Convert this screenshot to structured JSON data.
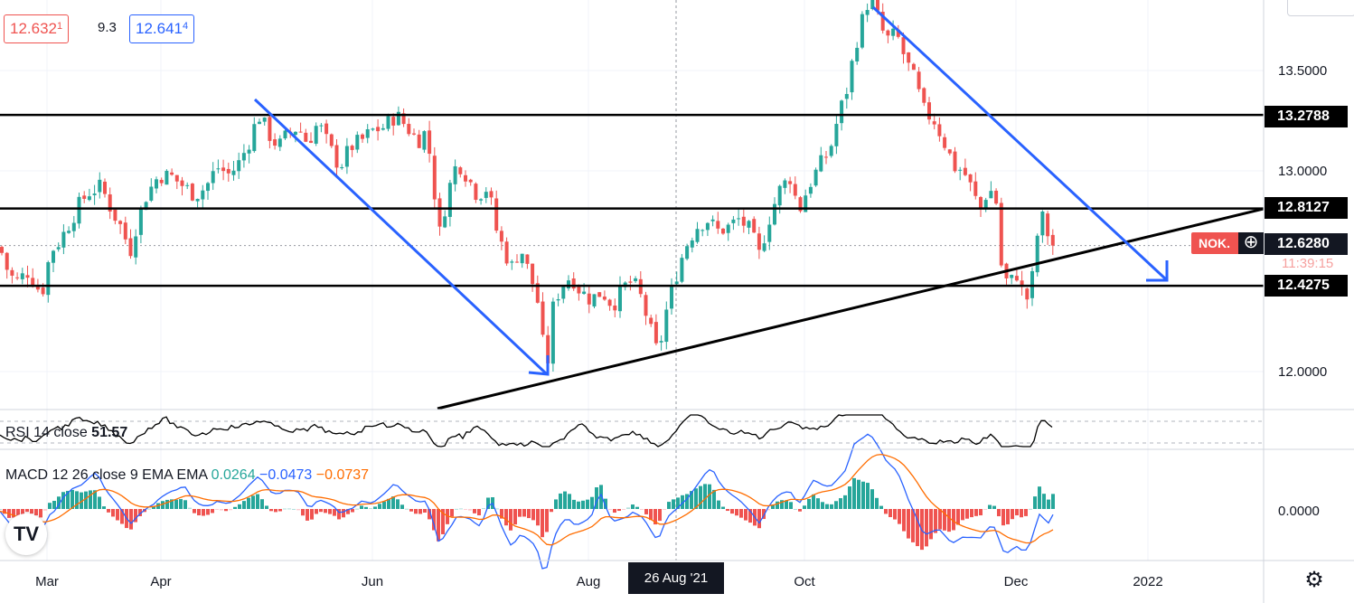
{
  "header": {
    "bid": "12.632",
    "bid_sup": "1",
    "spread": "9.3",
    "ask": "12.641",
    "ask_sup": "4"
  },
  "price_labels": {
    "upper_resistance": "13.2788",
    "mid_resistance": "12.8127",
    "last_price": "12.6280",
    "support": "12.4275",
    "countdown": "11:39:15",
    "symbol_tag": "NOK.",
    "plus_icon": "⊕"
  },
  "indicators": {
    "rsi": {
      "label": "RSI 14 close",
      "value": "51.57"
    },
    "macd": {
      "label": "MACD 12 26 close 9 EMA EMA",
      "histogram": "0.0264",
      "macd": "−0.0473",
      "signal": "−0.0737"
    }
  },
  "crosshair_date": "26 Aug '21",
  "logo_text": "TV",
  "icons": {
    "settings": "settings-gear-icon",
    "logo": "tradingview-logo-icon"
  },
  "colors": {
    "up": "#26a69a",
    "down": "#ef5350",
    "trend_arrow": "#2962ff",
    "levels": "#000000",
    "signal": "#ff6d00"
  },
  "chart_data": {
    "type": "candlestick",
    "price_axis": {
      "ticks": [
        13.5,
        13.0,
        12.0
      ],
      "tick_labels": [
        "13.5000",
        "13.0000",
        "12.0000"
      ],
      "ylim": [
        11.68,
        13.95
      ]
    },
    "x_axis": {
      "labels": [
        "Mar",
        "Apr",
        "Jun",
        "Aug",
        "Oct",
        "Dec",
        "2022"
      ]
    },
    "horizontal_levels": [
      13.2788,
      12.8127,
      12.4275
    ],
    "last_price": 12.628,
    "rsi_value": 51.57,
    "macd_values": {
      "histogram": 0.0264,
      "macd": -0.0473,
      "signal": -0.0737
    },
    "macd_axis_tick": "0.0000",
    "price_path": [
      [
        0,
        12.62
      ],
      [
        10,
        12.48
      ],
      [
        20,
        12.45
      ],
      [
        30,
        12.5
      ],
      [
        38,
        12.45
      ],
      [
        46,
        12.38
      ],
      [
        56,
        12.6
      ],
      [
        66,
        12.65
      ],
      [
        78,
        12.75
      ],
      [
        90,
        12.85
      ],
      [
        100,
        12.9
      ],
      [
        112,
        12.92
      ],
      [
        124,
        12.8
      ],
      [
        134,
        12.72
      ],
      [
        144,
        12.6
      ],
      [
        152,
        12.75
      ],
      [
        162,
        12.88
      ],
      [
        176,
        12.98
      ],
      [
        190,
        12.97
      ],
      [
        204,
        12.92
      ],
      [
        216,
        12.88
      ],
      [
        228,
        12.92
      ],
      [
        240,
        13.02
      ],
      [
        254,
        12.98
      ],
      [
        266,
        13.05
      ],
      [
        276,
        13.15
      ],
      [
        286,
        13.28
      ],
      [
        298,
        13.18
      ],
      [
        308,
        13.12
      ],
      [
        318,
        13.18
      ],
      [
        330,
        13.22
      ],
      [
        340,
        13.14
      ],
      [
        352,
        13.24
      ],
      [
        364,
        13.12
      ],
      [
        376,
        13.02
      ],
      [
        388,
        13.12
      ],
      [
        400,
        13.15
      ],
      [
        412,
        13.2
      ],
      [
        426,
        13.22
      ],
      [
        438,
        13.28
      ],
      [
        450,
        13.22
      ],
      [
        462,
        13.15
      ],
      [
        472,
        13.2
      ],
      [
        480,
        12.92
      ],
      [
        486,
        12.68
      ],
      [
        496,
        12.9
      ],
      [
        506,
        13.05
      ],
      [
        516,
        12.98
      ],
      [
        528,
        12.88
      ],
      [
        540,
        12.92
      ],
      [
        548,
        12.72
      ],
      [
        558,
        12.6
      ],
      [
        566,
        12.52
      ],
      [
        576,
        12.62
      ],
      [
        586,
        12.48
      ],
      [
        594,
        12.38
      ],
      [
        600,
        12.15
      ],
      [
        606,
        12.05
      ],
      [
        612,
        12.32
      ],
      [
        620,
        12.42
      ],
      [
        632,
        12.48
      ],
      [
        642,
        12.4
      ],
      [
        654,
        12.36
      ],
      [
        666,
        12.4
      ],
      [
        678,
        12.33
      ],
      [
        690,
        12.42
      ],
      [
        700,
        12.45
      ],
      [
        710,
        12.36
      ],
      [
        720,
        12.2
      ],
      [
        728,
        12.08
      ],
      [
        738,
        12.32
      ],
      [
        748,
        12.48
      ],
      [
        758,
        12.62
      ],
      [
        770,
        12.72
      ],
      [
        782,
        12.76
      ],
      [
        794,
        12.7
      ],
      [
        806,
        12.72
      ],
      [
        818,
        12.76
      ],
      [
        830,
        12.7
      ],
      [
        840,
        12.58
      ],
      [
        850,
        12.75
      ],
      [
        862,
        12.9
      ],
      [
        874,
        12.97
      ],
      [
        884,
        12.8
      ],
      [
        894,
        12.92
      ],
      [
        906,
        13.02
      ],
      [
        918,
        13.1
      ],
      [
        928,
        13.28
      ],
      [
        938,
        13.42
      ],
      [
        946,
        13.62
      ],
      [
        954,
        13.75
      ],
      [
        962,
        13.87
      ],
      [
        970,
        13.78
      ],
      [
        980,
        13.65
      ],
      [
        992,
        13.68
      ],
      [
        1002,
        13.55
      ],
      [
        1012,
        13.45
      ],
      [
        1022,
        13.3
      ],
      [
        1034,
        13.25
      ],
      [
        1044,
        13.15
      ],
      [
        1056,
        13.02
      ],
      [
        1066,
        13.0
      ],
      [
        1076,
        12.9
      ],
      [
        1084,
        12.8
      ],
      [
        1094,
        12.92
      ],
      [
        1102,
        12.85
      ],
      [
        1108,
        12.52
      ],
      [
        1116,
        12.42
      ],
      [
        1124,
        12.5
      ],
      [
        1132,
        12.38
      ],
      [
        1138,
        12.36
      ],
      [
        1144,
        12.52
      ],
      [
        1150,
        12.78
      ],
      [
        1156,
        12.75
      ],
      [
        1162,
        12.63
      ],
      [
        1168,
        12.63
      ]
    ]
  }
}
